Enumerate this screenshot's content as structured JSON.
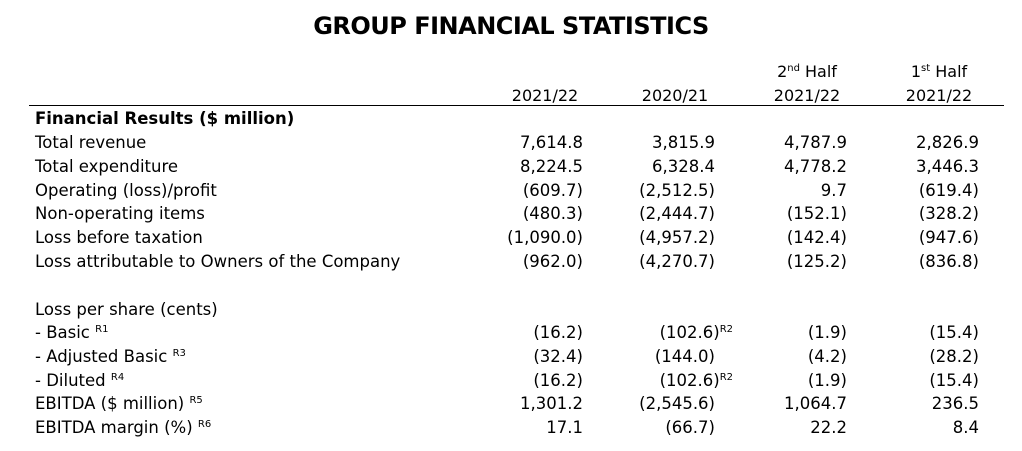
{
  "title": "GROUP FINANCIAL STATISTICS",
  "columns": [
    {
      "top": "",
      "bottom": "2021/22"
    },
    {
      "top": "",
      "bottom": "2020/21"
    },
    {
      "top_main": "2",
      "top_sup": "nd",
      "top_rest": " Half",
      "bottom": "2021/22"
    },
    {
      "top_main": "1",
      "top_sup": "st",
      "top_rest": " Half",
      "bottom": "2021/22"
    }
  ],
  "section_heading": "Financial Results ($ million)",
  "rows": [
    {
      "label": "Total revenue",
      "values": [
        "7,614.8",
        "3,815.9",
        "4,787.9",
        "2,826.9"
      ]
    },
    {
      "label": "Total expenditure",
      "values": [
        "8,224.5",
        "6,328.4",
        "4,778.2",
        "3,446.3"
      ]
    },
    {
      "label": "Operating (loss)/profit",
      "values": [
        "(609.7)",
        "(2,512.5)",
        "9.7",
        "(619.4)"
      ]
    },
    {
      "label": "Non-operating items",
      "values": [
        "(480.3)",
        "(2,444.7)",
        "(152.1)",
        "(328.2)"
      ]
    },
    {
      "label": "Loss before taxation",
      "values": [
        "(1,090.0)",
        "(4,957.2)",
        "(142.4)",
        "(947.6)"
      ]
    },
    {
      "label": "Loss attributable to Owners of the Company",
      "values": [
        "(962.0)",
        "(4,270.7)",
        "(125.2)",
        "(836.8)"
      ]
    }
  ],
  "lps_heading": "Loss per share (cents)",
  "rows2": [
    {
      "label": "- Basic",
      "ref": "R1",
      "values": [
        "(16.2)",
        "(102.6)",
        "(1.9)",
        "(15.4)"
      ],
      "value_refs": [
        "",
        "R2",
        "",
        ""
      ]
    },
    {
      "label": "- Adjusted Basic",
      "ref": "R3",
      "values": [
        "(32.4)",
        "(144.0)",
        "(4.2)",
        "(28.2)"
      ],
      "value_refs": [
        "",
        "",
        "",
        ""
      ]
    },
    {
      "label": "- Diluted",
      "ref": "R4",
      "values": [
        "(16.2)",
        "(102.6)",
        "(1.9)",
        "(15.4)"
      ],
      "value_refs": [
        "",
        "R2",
        "",
        ""
      ]
    },
    {
      "label": "EBITDA ($ million)",
      "ref": "R5",
      "values": [
        "1,301.2",
        "(2,545.6)",
        "1,064.7",
        "236.5"
      ],
      "value_refs": [
        "",
        "",
        "",
        ""
      ]
    },
    {
      "label": "EBITDA margin (%)",
      "ref": "R6",
      "values": [
        "17.1",
        "(66.7)",
        "22.2",
        "8.4"
      ],
      "value_refs": [
        "",
        "",
        "",
        ""
      ]
    }
  ]
}
